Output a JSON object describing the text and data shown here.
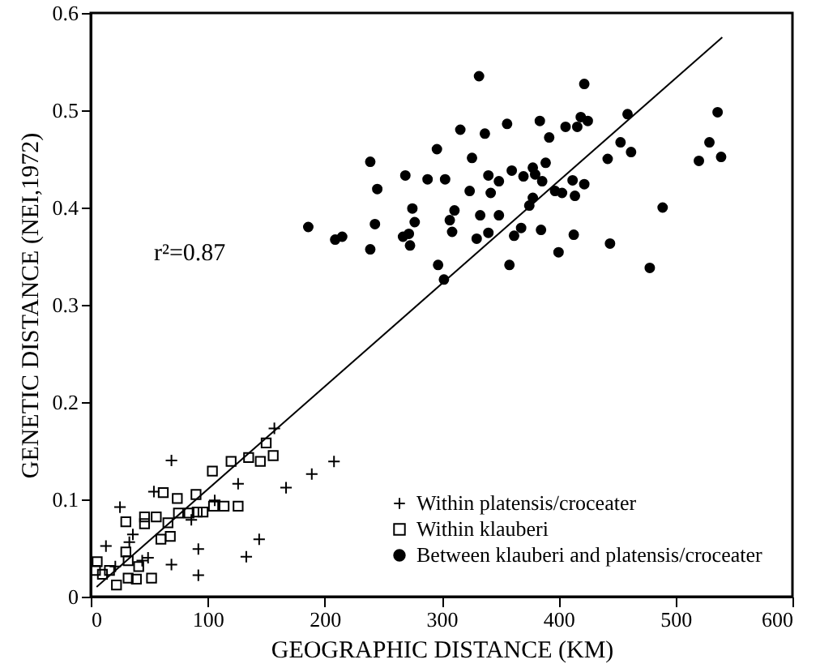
{
  "chart_data": {
    "type": "scatter",
    "xlabel": "GEOGRAPHIC DISTANCE (KM)",
    "ylabel": "GENETIC DISTANCE (NEI,1972)",
    "xlim": [
      0,
      600
    ],
    "xticks": [
      0,
      100,
      200,
      300,
      400,
      500,
      600
    ],
    "ylim": [
      0,
      0.6
    ],
    "yticks": [
      0,
      0.1,
      0.2,
      0.3,
      0.4,
      0.5,
      0.6
    ],
    "grid": false,
    "legend": "bottom right",
    "annotations": [
      "r²=0.87"
    ],
    "series": [
      {
        "name": "Within platensis/croceater",
        "color": "#000000",
        "marker": "cross",
        "x": [
          157,
          69,
          54,
          25,
          36,
          33,
          13,
          21,
          44,
          49,
          69,
          86,
          92,
          92,
          106,
          126,
          133,
          144,
          167,
          189,
          208
        ],
        "values": [
          0.173,
          0.14,
          0.108,
          0.092,
          0.064,
          0.056,
          0.052,
          0.031,
          0.037,
          0.04,
          0.033,
          0.079,
          0.049,
          0.022,
          0.099,
          0.116,
          0.041,
          0.059,
          0.112,
          0.126,
          0.139
        ]
      },
      {
        "name": "Within klauberi",
        "color": "#000000",
        "marker": "square",
        "x": [
          5.5,
          4,
          10,
          16,
          22,
          30,
          32,
          32,
          30,
          39,
          41,
          46,
          46,
          52,
          56,
          60,
          62,
          66,
          68,
          74,
          75,
          84,
          90,
          91,
          96,
          104,
          105,
          114,
          120,
          126,
          135,
          145,
          150,
          156
        ],
        "values": [
          0.036,
          0.027,
          0.023,
          0.027,
          0.012,
          0.046,
          0.037,
          0.019,
          0.077,
          0.018,
          0.031,
          0.082,
          0.075,
          0.019,
          0.082,
          0.059,
          0.107,
          0.076,
          0.062,
          0.101,
          0.086,
          0.086,
          0.105,
          0.087,
          0.087,
          0.129,
          0.093,
          0.093,
          0.139,
          0.093,
          0.143,
          0.139,
          0.158,
          0.145
        ]
      },
      {
        "name": "Between klauberi and platensis/croceater",
        "color": "#000000",
        "marker": "circle",
        "x": [
          332,
          422,
          419,
          425,
          406,
          416,
          384,
          356,
          316,
          337,
          392,
          296,
          239,
          326,
          442,
          389,
          378,
          360,
          370,
          380,
          340,
          269,
          288,
          303,
          349,
          386,
          412,
          422,
          245,
          324,
          342,
          397,
          403,
          414,
          378,
          375,
          275,
          311,
          277,
          307,
          333,
          349,
          186,
          243,
          309,
          368,
          385,
          272,
          267,
          340,
          362,
          413,
          209,
          215,
          330,
          444,
          273,
          239,
          400,
          297,
          358,
          302,
          459,
          536,
          453,
          462,
          529,
          520,
          539,
          489,
          478
        ],
        "values": [
          0.535,
          0.527,
          0.493,
          0.489,
          0.483,
          0.483,
          0.489,
          0.486,
          0.48,
          0.476,
          0.472,
          0.46,
          0.447,
          0.451,
          0.45,
          0.446,
          0.441,
          0.438,
          0.432,
          0.434,
          0.433,
          0.433,
          0.429,
          0.429,
          0.427,
          0.427,
          0.428,
          0.424,
          0.419,
          0.417,
          0.415,
          0.417,
          0.415,
          0.412,
          0.41,
          0.402,
          0.399,
          0.397,
          0.385,
          0.387,
          0.392,
          0.392,
          0.38,
          0.383,
          0.375,
          0.379,
          0.377,
          0.373,
          0.37,
          0.374,
          0.371,
          0.372,
          0.367,
          0.37,
          0.368,
          0.363,
          0.361,
          0.357,
          0.354,
          0.341,
          0.341,
          0.326,
          0.496,
          0.498,
          0.467,
          0.457,
          0.467,
          0.448,
          0.452,
          0.4,
          0.338
        ]
      },
      {
        "type": "line",
        "color": "#000000",
        "line_style": "solid",
        "marker": "none",
        "x": [
          5,
          540
        ],
        "values": [
          0.01,
          0.575
        ]
      }
    ]
  }
}
